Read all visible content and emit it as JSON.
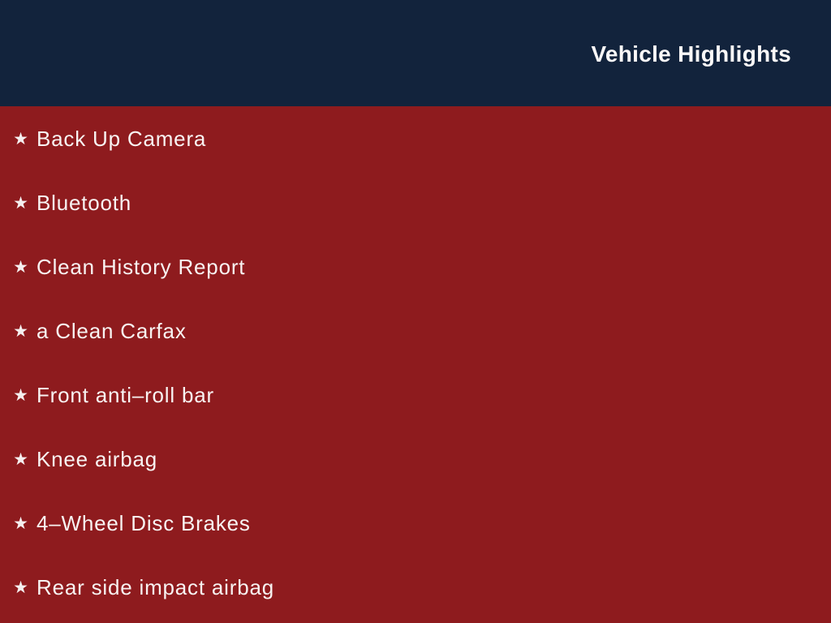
{
  "slide": {
    "header": {
      "title": "Vehicle Highlights",
      "background_color": "#12233C",
      "title_color": "#FAF8F8"
    },
    "body": {
      "background_color": "#8E1B1E",
      "text_color": "#F8F3F2",
      "bullet_glyph": "★",
      "bullet_icon": "star-icon"
    },
    "items": [
      "Back Up Camera",
      "Bluetooth",
      "Clean History Report",
      "a Clean Carfax",
      "Front anti–roll bar",
      "Knee airbag",
      "4–Wheel Disc Brakes",
      "Rear side impact airbag"
    ]
  }
}
